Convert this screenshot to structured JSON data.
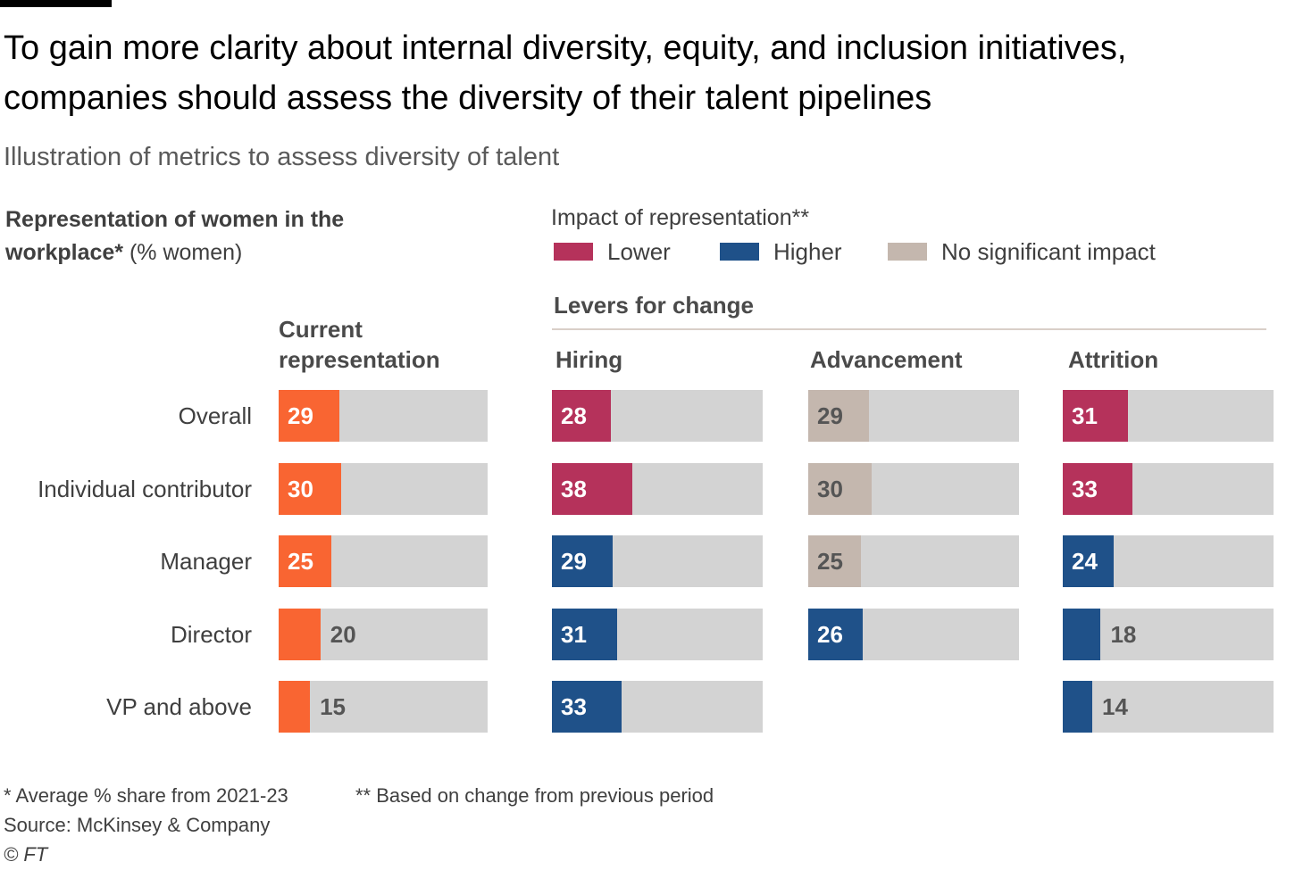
{
  "header": {
    "title": "To gain more clarity about internal diversity, equity, and inclusion initiatives, companies should assess the diversity of their talent pipelines",
    "subtitle": "Illustration of metrics to assess diversity of talent"
  },
  "representation_heading": {
    "bold": "Representation of women in the workplace*",
    "normal": " (% women)"
  },
  "legend": {
    "title": "Impact of representation**",
    "items": [
      {
        "label": "Lower",
        "color": "#b5325b"
      },
      {
        "label": "Higher",
        "color": "#1f5189"
      },
      {
        "label": "No significant impact",
        "color": "#c4b7ae"
      }
    ]
  },
  "levers_title": "Levers for change",
  "colors": {
    "current": "#f96532",
    "Lower": "#b5325b",
    "Higher": "#1f5189",
    "None": "#c4b7ae",
    "track": "#d3d3d3",
    "label_on_fill": "#ffffff",
    "label_on_track": "#555555"
  },
  "chart_data": {
    "type": "bar",
    "orientation": "horizontal",
    "title": "To gain more clarity about internal diversity, equity, and inclusion initiatives, companies should assess the diversity of their talent pipelines",
    "subtitle": "Illustration of metrics to assess diversity of talent",
    "unit": "% women",
    "xlim": [
      0,
      100
    ],
    "categories": [
      "Overall",
      "Individual contributor",
      "Manager",
      "Director",
      "VP and above"
    ],
    "series": [
      {
        "name": "Current representation",
        "values": [
          29,
          30,
          25,
          20,
          15
        ],
        "impact": [
          null,
          null,
          null,
          null,
          null
        ]
      },
      {
        "name": "Hiring",
        "values": [
          28,
          38,
          29,
          31,
          33
        ],
        "impact": [
          "Lower",
          "Lower",
          "Higher",
          "Higher",
          "Higher"
        ]
      },
      {
        "name": "Advancement",
        "values": [
          29,
          30,
          25,
          26,
          null
        ],
        "impact": [
          "None",
          "None",
          "None",
          "Higher",
          null
        ]
      },
      {
        "name": "Attrition",
        "values": [
          31,
          33,
          24,
          18,
          14
        ],
        "impact": [
          "Lower",
          "Lower",
          "Higher",
          "Higher",
          "Higher"
        ]
      }
    ]
  },
  "column_headers": [
    "Current representation",
    "Hiring",
    "Advancement",
    "Attrition"
  ],
  "footnotes": {
    "note1": "* Average % share from 2021-23",
    "note2": "** Based on change from previous period",
    "source": "Source: McKinsey & Company",
    "copyright": "© FT"
  }
}
